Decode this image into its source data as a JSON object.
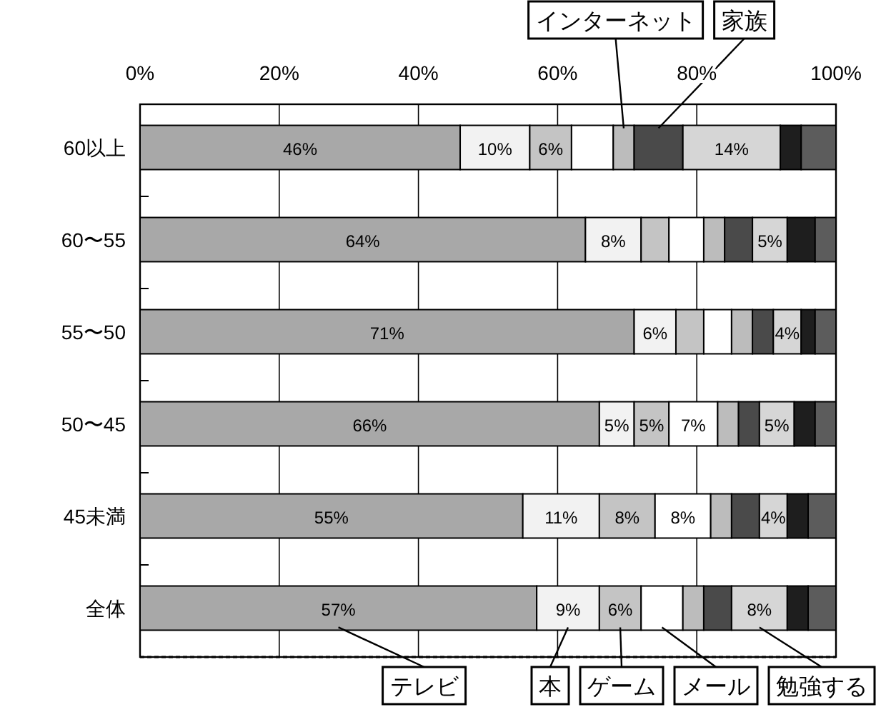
{
  "chart_data": {
    "type": "bar",
    "orientation": "horizontal",
    "stacked": true,
    "categories": [
      "60以上",
      "60〜55",
      "55〜50",
      "50〜45",
      "45未満",
      "全体"
    ],
    "xlim": [
      0,
      100
    ],
    "xticks": [
      {
        "value": 0,
        "label": "0%"
      },
      {
        "value": 20,
        "label": "20%"
      },
      {
        "value": 40,
        "label": "40%"
      },
      {
        "value": 60,
        "label": "60%"
      },
      {
        "value": 80,
        "label": "80%"
      },
      {
        "value": 100,
        "label": "100%"
      }
    ],
    "grid": "x",
    "legend": "bottom",
    "series": [
      {
        "name": "テレビ",
        "color": "#a8a8a8",
        "values": [
          46,
          64,
          71,
          66,
          55,
          57
        ],
        "value_labels": [
          "46%",
          "64%",
          "71%",
          "66%",
          "55%",
          "57%"
        ]
      },
      {
        "name": "本",
        "color": "#f2f2f2",
        "values": [
          10,
          8,
          6,
          5,
          11,
          9
        ],
        "value_labels": [
          "10%",
          "8%",
          "6%",
          "5%",
          "11%",
          "9%"
        ]
      },
      {
        "name": "ゲーム",
        "color": "#c4c4c4",
        "values": [
          6,
          4,
          4,
          5,
          8,
          6
        ],
        "value_labels": [
          "6%",
          null,
          null,
          "5%",
          "8%",
          "6%"
        ]
      },
      {
        "name": "メール",
        "color": "#ffffff",
        "values": [
          6,
          5,
          4,
          7,
          8,
          6
        ],
        "value_labels": [
          null,
          null,
          null,
          "7%",
          "8%",
          null
        ]
      },
      {
        "name": "インターネット",
        "color": "#bcbcbc",
        "values": [
          3,
          3,
          3,
          3,
          3,
          3
        ],
        "value_labels": [
          null,
          null,
          null,
          null,
          null,
          null
        ]
      },
      {
        "name": "家族",
        "color": "#4a4a4a",
        "values": [
          7,
          4,
          3,
          3,
          4,
          4
        ],
        "value_labels": [
          null,
          null,
          null,
          null,
          null,
          null
        ]
      },
      {
        "name": "勉強する",
        "color": "#d6d6d6",
        "values": [
          14,
          5,
          4,
          5,
          4,
          8
        ],
        "value_labels": [
          "14%",
          "5%",
          "4%",
          "5%",
          "4%",
          "8%"
        ]
      },
      {
        "color": "#1e1e1e",
        "values": [
          3,
          4,
          2,
          3,
          3,
          3
        ],
        "value_labels": [
          null,
          null,
          null,
          null,
          null,
          null
        ]
      },
      {
        "color": "#5c5c5c",
        "values": [
          5,
          3,
          3,
          3,
          4,
          4
        ],
        "value_labels": [
          null,
          null,
          null,
          null,
          null,
          null
        ]
      }
    ]
  }
}
